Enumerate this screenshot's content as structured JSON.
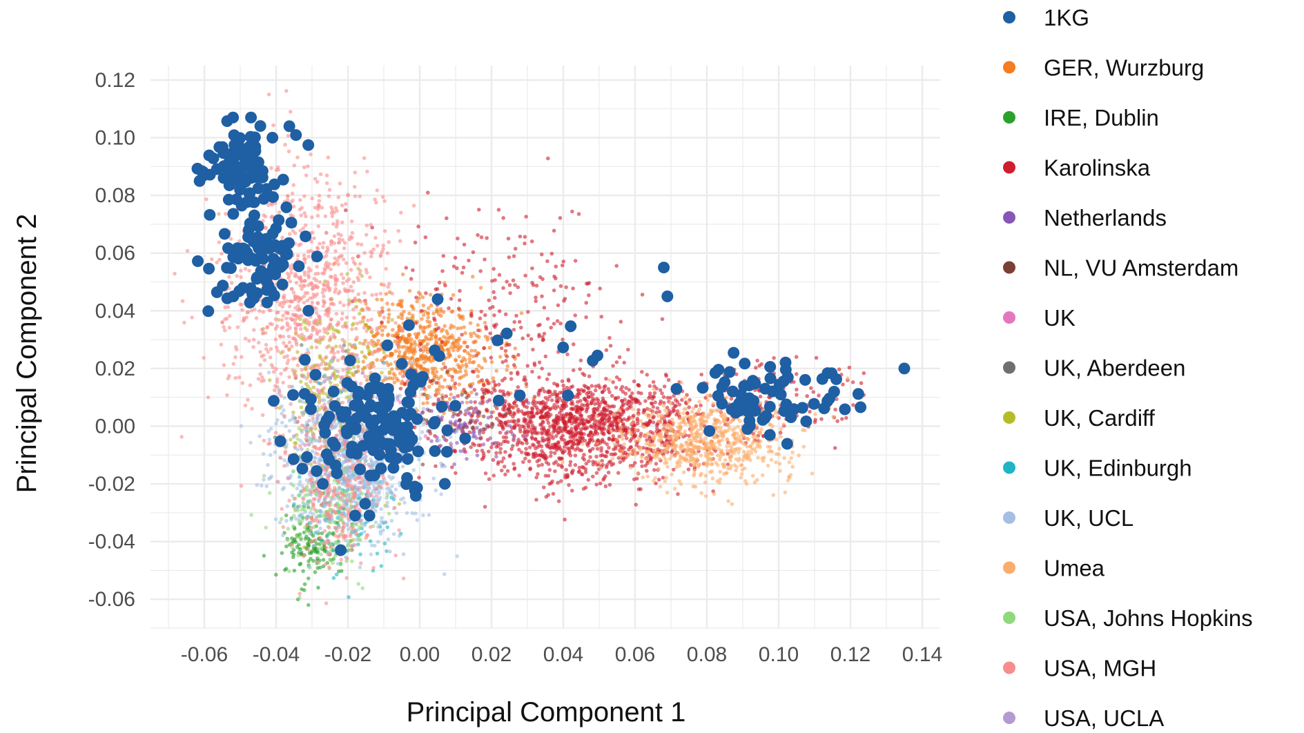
{
  "chart_data": {
    "type": "scatter",
    "title": "",
    "xlabel": "Principal Component 1",
    "ylabel": "Principal Component 2",
    "xlim": [
      -0.075,
      0.145
    ],
    "ylim": [
      -0.07,
      0.125
    ],
    "x_ticks": [
      -0.06,
      -0.04,
      -0.02,
      0.0,
      0.02,
      0.04,
      0.06,
      0.08,
      0.1,
      0.12,
      0.14
    ],
    "x_tick_labels": [
      "-0.06",
      "-0.04",
      "-0.02",
      "0.00",
      "0.02",
      "0.04",
      "0.06",
      "0.08",
      "0.10",
      "0.12",
      "0.14"
    ],
    "y_ticks": [
      -0.06,
      -0.04,
      -0.02,
      0.0,
      0.02,
      0.04,
      0.06,
      0.08,
      0.1,
      0.12
    ],
    "y_tick_labels": [
      "-0.06",
      "-0.04",
      "-0.02",
      "0.00",
      "0.02",
      "0.04",
      "0.06",
      "0.08",
      "0.10",
      "0.12"
    ],
    "grid": true,
    "legend_position": "right",
    "series": [
      {
        "name": "1KG",
        "color": "#1f5fa3",
        "clusters": [
          {
            "cx": -0.05,
            "cy": 0.09,
            "sx": 0.006,
            "sy": 0.008,
            "n": 90
          },
          {
            "cx": -0.046,
            "cy": 0.058,
            "sx": 0.007,
            "sy": 0.008,
            "n": 80
          },
          {
            "cx": -0.012,
            "cy": 0.0,
            "sx": 0.01,
            "sy": 0.01,
            "n": 140
          },
          {
            "cx": 0.098,
            "cy": 0.01,
            "sx": 0.011,
            "sy": 0.006,
            "n": 70
          },
          {
            "cx": 0.025,
            "cy": 0.012,
            "sx": 0.02,
            "sy": 0.01,
            "n": 14
          }
        ],
        "points": [
          [
            0.068,
            0.055
          ],
          [
            0.069,
            0.045
          ],
          [
            0.135,
            0.02
          ],
          [
            -0.003,
            0.035
          ],
          [
            -0.009,
            0.028
          ],
          [
            0.005,
            0.044
          ],
          [
            -0.018,
            -0.031
          ],
          [
            -0.014,
            -0.031
          ],
          [
            -0.022,
            -0.043
          ],
          [
            -0.027,
            -0.02
          ],
          [
            0.007,
            -0.02
          ],
          [
            -0.032,
            0.023
          ],
          [
            -0.031,
            0.04
          ],
          [
            -0.047,
            0.107
          ],
          [
            -0.052,
            0.107
          ]
        ]
      },
      {
        "name": "GER, Wurzburg",
        "color": "#f57c1f",
        "clusters": [
          {
            "cx": 0.0,
            "cy": 0.028,
            "sx": 0.008,
            "sy": 0.009,
            "n": 500
          },
          {
            "cx": 0.01,
            "cy": 0.018,
            "sx": 0.01,
            "sy": 0.008,
            "n": 150
          }
        ],
        "points": []
      },
      {
        "name": "IRE, Dublin",
        "color": "#2ca02c",
        "clusters": [
          {
            "cx": -0.03,
            "cy": -0.04,
            "sx": 0.005,
            "sy": 0.007,
            "n": 150
          }
        ],
        "points": [
          [
            -0.031,
            -0.062
          ]
        ]
      },
      {
        "name": "Karolinska",
        "color": "#cf1e2e",
        "clusters": [
          {
            "cx": 0.045,
            "cy": 0.0,
            "sx": 0.017,
            "sy": 0.009,
            "n": 1400
          },
          {
            "cx": 0.025,
            "cy": 0.04,
            "sx": 0.017,
            "sy": 0.017,
            "n": 220
          },
          {
            "cx": 0.1,
            "cy": 0.01,
            "sx": 0.012,
            "sy": 0.007,
            "n": 130
          }
        ],
        "points": []
      },
      {
        "name": "Netherlands",
        "color": "#8856b5",
        "clusters": [
          {
            "cx": 0.012,
            "cy": 0.0,
            "sx": 0.006,
            "sy": 0.006,
            "n": 100
          }
        ],
        "points": []
      },
      {
        "name": "NL, VU Amsterdam",
        "color": "#7b3f35",
        "clusters": [
          {
            "cx": 0.01,
            "cy": 0.003,
            "sx": 0.007,
            "sy": 0.006,
            "n": 40
          }
        ],
        "points": []
      },
      {
        "name": "UK",
        "color": "#e377c2",
        "clusters": [
          {
            "cx": -0.02,
            "cy": 0.01,
            "sx": 0.01,
            "sy": 0.012,
            "n": 40
          }
        ],
        "points": []
      },
      {
        "name": "UK, Aberdeen",
        "color": "#6f6f6f",
        "clusters": [
          {
            "cx": -0.025,
            "cy": 0.01,
            "sx": 0.008,
            "sy": 0.01,
            "n": 30
          }
        ],
        "points": []
      },
      {
        "name": "UK, Cardiff",
        "color": "#b5bd26",
        "clusters": [
          {
            "cx": -0.025,
            "cy": 0.015,
            "sx": 0.008,
            "sy": 0.018,
            "n": 240
          }
        ],
        "points": []
      },
      {
        "name": "UK, Edinburgh",
        "color": "#1fb5c4",
        "clusters": [
          {
            "cx": -0.02,
            "cy": -0.025,
            "sx": 0.008,
            "sy": 0.012,
            "n": 130
          }
        ],
        "points": []
      },
      {
        "name": "UK, UCL",
        "color": "#a4bfe3",
        "clusters": [
          {
            "cx": -0.02,
            "cy": -0.012,
            "sx": 0.01,
            "sy": 0.014,
            "n": 900
          }
        ],
        "points": []
      },
      {
        "name": "Umea",
        "color": "#fbad6b",
        "clusters": [
          {
            "cx": 0.08,
            "cy": -0.005,
            "sx": 0.012,
            "sy": 0.007,
            "n": 700
          }
        ],
        "points": [
          [
            0.087,
            -0.027
          ],
          [
            0.086,
            -0.026
          ]
        ]
      },
      {
        "name": "USA, Johns Hopkins",
        "color": "#8fd97a",
        "clusters": [
          {
            "cx": -0.025,
            "cy": -0.028,
            "sx": 0.007,
            "sy": 0.012,
            "n": 160
          }
        ],
        "points": []
      },
      {
        "name": "USA, MGH",
        "color": "#f88d8e",
        "clusters": [
          {
            "cx": -0.032,
            "cy": 0.045,
            "sx": 0.011,
            "sy": 0.022,
            "n": 900
          },
          {
            "cx": -0.022,
            "cy": -0.02,
            "sx": 0.007,
            "sy": 0.015,
            "n": 350
          }
        ],
        "points": [
          [
            -0.042,
            0.115
          ],
          [
            -0.036,
            0.109
          ]
        ]
      },
      {
        "name": "USA, UCLA",
        "color": "#b39bd0",
        "clusters": [
          {
            "cx": -0.02,
            "cy": 0.0,
            "sx": 0.008,
            "sy": 0.012,
            "n": 60
          }
        ],
        "points": []
      }
    ]
  }
}
